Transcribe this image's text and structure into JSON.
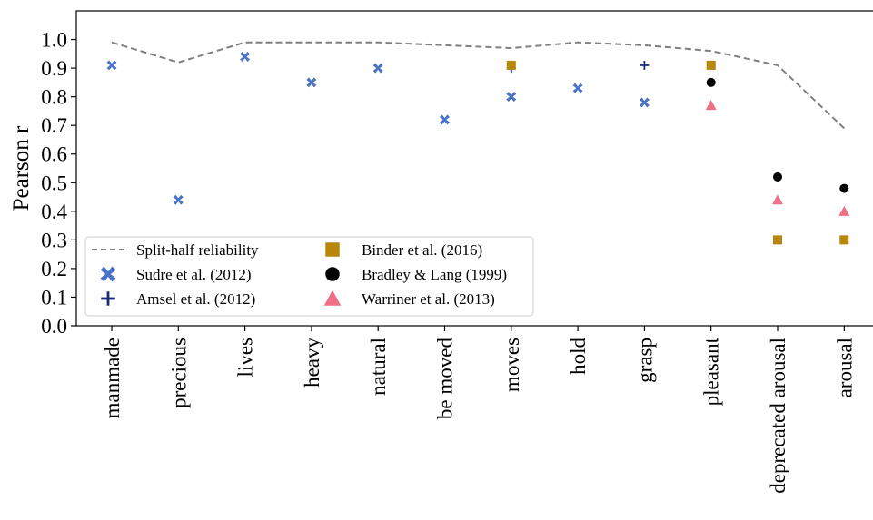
{
  "chart_data": {
    "type": "scatter",
    "ylabel": "Pearson r",
    "xlabel": "",
    "ylim": [
      0.0,
      1.1
    ],
    "yticks": [
      "0.0",
      "0.1",
      "0.2",
      "0.3",
      "0.4",
      "0.5",
      "0.6",
      "0.7",
      "0.8",
      "0.9",
      "1.0"
    ],
    "categories": [
      "manmade",
      "precious",
      "lives",
      "heavy",
      "natural",
      "be moved",
      "moves",
      "hold",
      "grasp",
      "pleasant",
      "deprecated arousal",
      "arousal"
    ],
    "grid": false,
    "legend_position": "lower-left",
    "series": [
      {
        "name": "Split-half reliability",
        "marker": "dashed-line",
        "color": "#808080",
        "values": [
          0.99,
          0.92,
          0.99,
          0.99,
          0.99,
          0.98,
          0.97,
          0.99,
          0.98,
          0.96,
          0.91,
          0.69
        ]
      },
      {
        "name": "Sudre et al. (2012)",
        "marker": "x-filled",
        "color": "#4a72c8",
        "values": [
          0.91,
          0.44,
          0.94,
          0.85,
          0.9,
          0.72,
          0.8,
          0.83,
          0.78,
          null,
          null,
          null
        ]
      },
      {
        "name": "Amsel et al. (2012)",
        "marker": "plus",
        "color": "#1b2a7a",
        "values": [
          null,
          null,
          null,
          null,
          null,
          null,
          0.9,
          null,
          0.91,
          null,
          null,
          null
        ]
      },
      {
        "name": "Binder et al. (2016)",
        "marker": "square",
        "color": "#b8860b",
        "values": [
          null,
          null,
          null,
          null,
          null,
          null,
          0.91,
          null,
          null,
          0.91,
          0.3,
          0.3
        ]
      },
      {
        "name": "Bradley & Lang (1999)",
        "marker": "circle",
        "color": "#000000",
        "values": [
          null,
          null,
          null,
          null,
          null,
          null,
          null,
          null,
          null,
          0.85,
          0.52,
          0.48
        ]
      },
      {
        "name": "Warriner et al. (2013)",
        "marker": "triangle",
        "color": "#ef6f86",
        "values": [
          null,
          null,
          null,
          null,
          null,
          null,
          null,
          null,
          null,
          0.77,
          0.44,
          0.4
        ]
      }
    ]
  }
}
